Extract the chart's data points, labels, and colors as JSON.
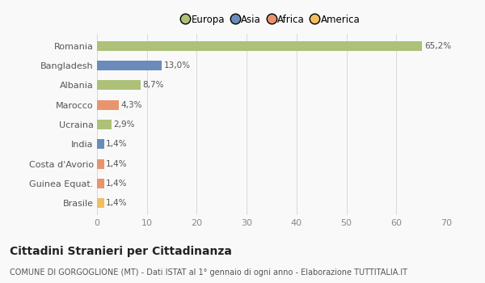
{
  "categories": [
    "Romania",
    "Bangladesh",
    "Albania",
    "Marocco",
    "Ucraina",
    "India",
    "Costa d'Avorio",
    "Guinea Equat.",
    "Brasile"
  ],
  "values": [
    65.2,
    13.0,
    8.7,
    4.3,
    2.9,
    1.4,
    1.4,
    1.4,
    1.4
  ],
  "labels": [
    "65,2%",
    "13,0%",
    "8,7%",
    "4,3%",
    "2,9%",
    "1,4%",
    "1,4%",
    "1,4%",
    "1,4%"
  ],
  "colors": [
    "#adc178",
    "#6b8cba",
    "#adc178",
    "#e8956d",
    "#adc178",
    "#6b8cba",
    "#e8956d",
    "#e8956d",
    "#f0c060"
  ],
  "legend": [
    {
      "label": "Europa",
      "color": "#adc178"
    },
    {
      "label": "Asia",
      "color": "#6b8cba"
    },
    {
      "label": "Africa",
      "color": "#e8956d"
    },
    {
      "label": "America",
      "color": "#f0c060"
    }
  ],
  "xlim": [
    0,
    70
  ],
  "xticks": [
    0,
    10,
    20,
    30,
    40,
    50,
    60,
    70
  ],
  "title": "Cittadini Stranieri per Cittadinanza",
  "subtitle": "COMUNE DI GORGOGLIONE (MT) - Dati ISTAT al 1° gennaio di ogni anno - Elaborazione TUTTITALIA.IT",
  "background_color": "#f9f9f9",
  "grid_color": "#d8d8d8",
  "bar_height": 0.5,
  "label_fontsize": 7.5,
  "ytick_fontsize": 8,
  "xtick_fontsize": 8,
  "title_fontsize": 10,
  "subtitle_fontsize": 7
}
